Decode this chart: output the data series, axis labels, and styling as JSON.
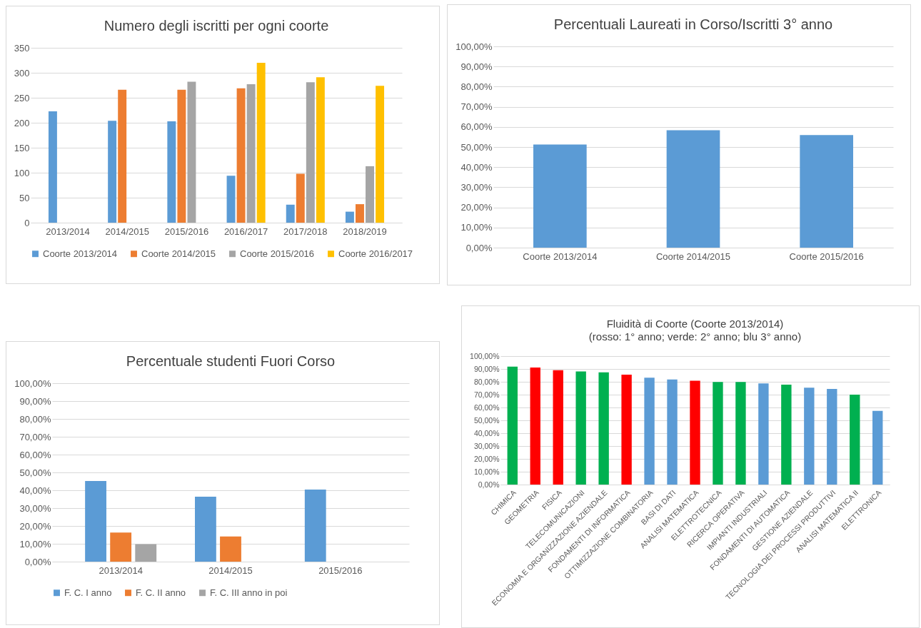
{
  "chart_data": [
    {
      "type": "bar",
      "title": "Numero degli iscritti per ogni coorte",
      "categories": [
        "2013/2014",
        "2014/2015",
        "2015/2016",
        "2016/2017",
        "2017/2018",
        "2018/2019"
      ],
      "series": [
        {
          "name": "Coorte 2013/2014",
          "color": "#5b9bd5",
          "values": [
            223,
            204,
            203,
            94,
            36,
            22
          ]
        },
        {
          "name": "Coorte 2014/2015",
          "color": "#ed7d31",
          "values": [
            null,
            266,
            266,
            269,
            98,
            37
          ]
        },
        {
          "name": "Coorte 2015/2016",
          "color": "#a5a5a5",
          "values": [
            null,
            null,
            282,
            277,
            281,
            113
          ]
        },
        {
          "name": "Coorte 2016/2017",
          "color": "#ffc000",
          "values": [
            null,
            null,
            null,
            320,
            291,
            274
          ]
        }
      ],
      "ylim": [
        0,
        350
      ],
      "yticks": [
        0,
        50,
        100,
        150,
        200,
        250,
        300,
        350
      ],
      "grid": "y",
      "legend": "bottom"
    },
    {
      "type": "bar",
      "title": "Percentuali Laureati in Corso/Iscritti 3° anno",
      "categories": [
        "Coorte 2013/2014",
        "Coorte 2014/2015",
        "Coorte 2015/2016"
      ],
      "series": [
        {
          "color": "#5b9bd5",
          "values": [
            51.2,
            58.3,
            55.9
          ]
        }
      ],
      "ylim": [
        0,
        100
      ],
      "yticks": [
        {
          "value": 0,
          "label": "0,00%"
        },
        {
          "value": 10,
          "label": "10,00%"
        },
        {
          "value": 20,
          "label": "20,00%"
        },
        {
          "value": 30,
          "label": "30,00%"
        },
        {
          "value": 40,
          "label": "40,00%"
        },
        {
          "value": 50,
          "label": "50,00%"
        },
        {
          "value": 60,
          "label": "60,00%"
        },
        {
          "value": 70,
          "label": "70,00%"
        },
        {
          "value": 80,
          "label": "80,00%"
        },
        {
          "value": 90,
          "label": "90,00%"
        },
        {
          "value": 100,
          "label": "100,00%"
        }
      ],
      "grid": "y"
    },
    {
      "type": "bar",
      "title": "Percentuale studenti Fuori Corso",
      "categories": [
        "2013/2014",
        "2014/2015",
        "2015/2016"
      ],
      "series": [
        {
          "name": "F. C. I anno",
          "color": "#5b9bd5",
          "values": [
            45.2,
            36.4,
            40.4
          ]
        },
        {
          "name": "F. C. II anno",
          "color": "#ed7d31",
          "values": [
            16.3,
            14.1,
            null
          ]
        },
        {
          "name": "F. C. III anno in poi",
          "color": "#a5a5a5",
          "values": [
            9.8,
            null,
            null
          ]
        }
      ],
      "ylim": [
        0,
        100
      ],
      "yticks": [
        {
          "value": 0,
          "label": "0,00%"
        },
        {
          "value": 10,
          "label": "10,00%"
        },
        {
          "value": 20,
          "label": "20,00%"
        },
        {
          "value": 30,
          "label": "30,00%"
        },
        {
          "value": 40,
          "label": "40,00%"
        },
        {
          "value": 50,
          "label": "50,00%"
        },
        {
          "value": 60,
          "label": "60,00%"
        },
        {
          "value": 70,
          "label": "70,00%"
        },
        {
          "value": 80,
          "label": "80,00%"
        },
        {
          "value": 90,
          "label": "90,00%"
        },
        {
          "value": 100,
          "label": "100,00%"
        }
      ],
      "grid": "y",
      "legend": "bottom"
    },
    {
      "type": "bar",
      "title": "Fluidità di Coorte (Coorte 2013/2014)",
      "subtitle": "(rosso: 1° anno; verde: 2° anno; blu 3° anno)",
      "categories": [
        "CHIMICA",
        "GEOMETRIA",
        "FISICA",
        "TELECOMUNICAZIONI",
        "ECONOMIA E ORGANIZZAZIONE AZIENDALE",
        "FONDAMENTI DI INFORMATICA",
        "OTTIMIZZAZIONE COMBINATORIA",
        "BASI DI DATI",
        "ANALISI MATEMATICA",
        "ELETTROTECNICA",
        "RICERCA OPERATIVA",
        "IMPIANTI INDUSTRIALI",
        "FONDAMENTI DI AUTOMATICA",
        "GESTIONE AZIENDALE",
        "TECNOLOGIA DEI PROCESSI PRODUTTIVI",
        "ANALISI MATEMATICA II",
        "ELETTRONICA"
      ],
      "series": [
        {
          "colors": [
            "#00b050",
            "#ff0000",
            "#ff0000",
            "#00b050",
            "#00b050",
            "#ff0000",
            "#5b9bd5",
            "#5b9bd5",
            "#ff0000",
            "#00b050",
            "#00b050",
            "#5b9bd5",
            "#00b050",
            "#5b9bd5",
            "#5b9bd5",
            "#00b050",
            "#5b9bd5"
          ],
          "values": [
            91.8,
            91.1,
            89.0,
            88.0,
            87.3,
            85.5,
            83.2,
            81.8,
            80.8,
            79.8,
            79.8,
            78.8,
            77.8,
            75.4,
            74.4,
            70.0,
            57.3
          ]
        }
      ],
      "ylim": [
        0,
        100
      ],
      "yticks": [
        {
          "value": 0,
          "label": "0,00%"
        },
        {
          "value": 10,
          "label": "10,00%"
        },
        {
          "value": 20,
          "label": "20,00%"
        },
        {
          "value": 30,
          "label": "30,00%"
        },
        {
          "value": 40,
          "label": "40,00%"
        },
        {
          "value": 50,
          "label": "50,00%"
        },
        {
          "value": 60,
          "label": "60,00%"
        },
        {
          "value": 70,
          "label": "70,00%"
        },
        {
          "value": 80,
          "label": "80,00%"
        },
        {
          "value": 90,
          "label": "90,00%"
        },
        {
          "value": 100,
          "label": "100,00%"
        }
      ],
      "grid": "y"
    }
  ]
}
